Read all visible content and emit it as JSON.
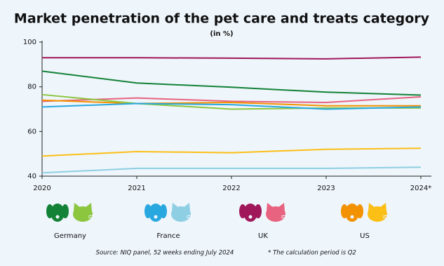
{
  "chart_data": {
    "type": "line",
    "title": "Market penetration of the pet care and treats category",
    "subtitle": "(in %)",
    "categories": [
      "2020",
      "2021",
      "2022",
      "2023",
      "2024*"
    ],
    "series": [
      {
        "color": "#a0175a",
        "values": [
          93,
          93,
          92.8,
          92.5,
          93.3
        ]
      },
      {
        "color": "#138236",
        "values": [
          87,
          81.7,
          79.8,
          77.6,
          76.3
        ]
      },
      {
        "color": "#e8637f",
        "values": [
          73.5,
          75,
          73.5,
          73,
          75.5
        ]
      },
      {
        "color": "#f39200",
        "values": [
          74,
          72.5,
          73,
          71.5,
          71.5
        ]
      },
      {
        "color": "#8cc63f",
        "values": [
          76.5,
          72.5,
          70,
          70.5,
          70.5
        ]
      },
      {
        "color": "#29a8e0",
        "values": [
          71,
          72.5,
          72,
          70,
          71
        ]
      },
      {
        "color": "#fbbf16",
        "values": [
          49,
          51,
          50.5,
          52,
          52.5
        ]
      },
      {
        "color": "#8ecfe3",
        "values": [
          41.5,
          43.5,
          43.5,
          43.5,
          44
        ]
      }
    ],
    "ylim": [
      40,
      100
    ],
    "yticks": [
      40,
      60,
      80,
      100
    ],
    "grid": false,
    "legend": [
      {
        "label": "Germany",
        "colors": [
          "#138236",
          "#8cc63f"
        ]
      },
      {
        "label": "France",
        "colors": [
          "#29a8e0",
          "#8ecfe3"
        ]
      },
      {
        "label": "UK",
        "colors": [
          "#a0175a",
          "#e8637f"
        ]
      },
      {
        "label": "US",
        "colors": [
          "#f39200",
          "#fbbf16"
        ]
      }
    ],
    "source": "Source: NIQ panel, 52 weeks ending July 2024",
    "note": "* The calculation period is Q2"
  }
}
